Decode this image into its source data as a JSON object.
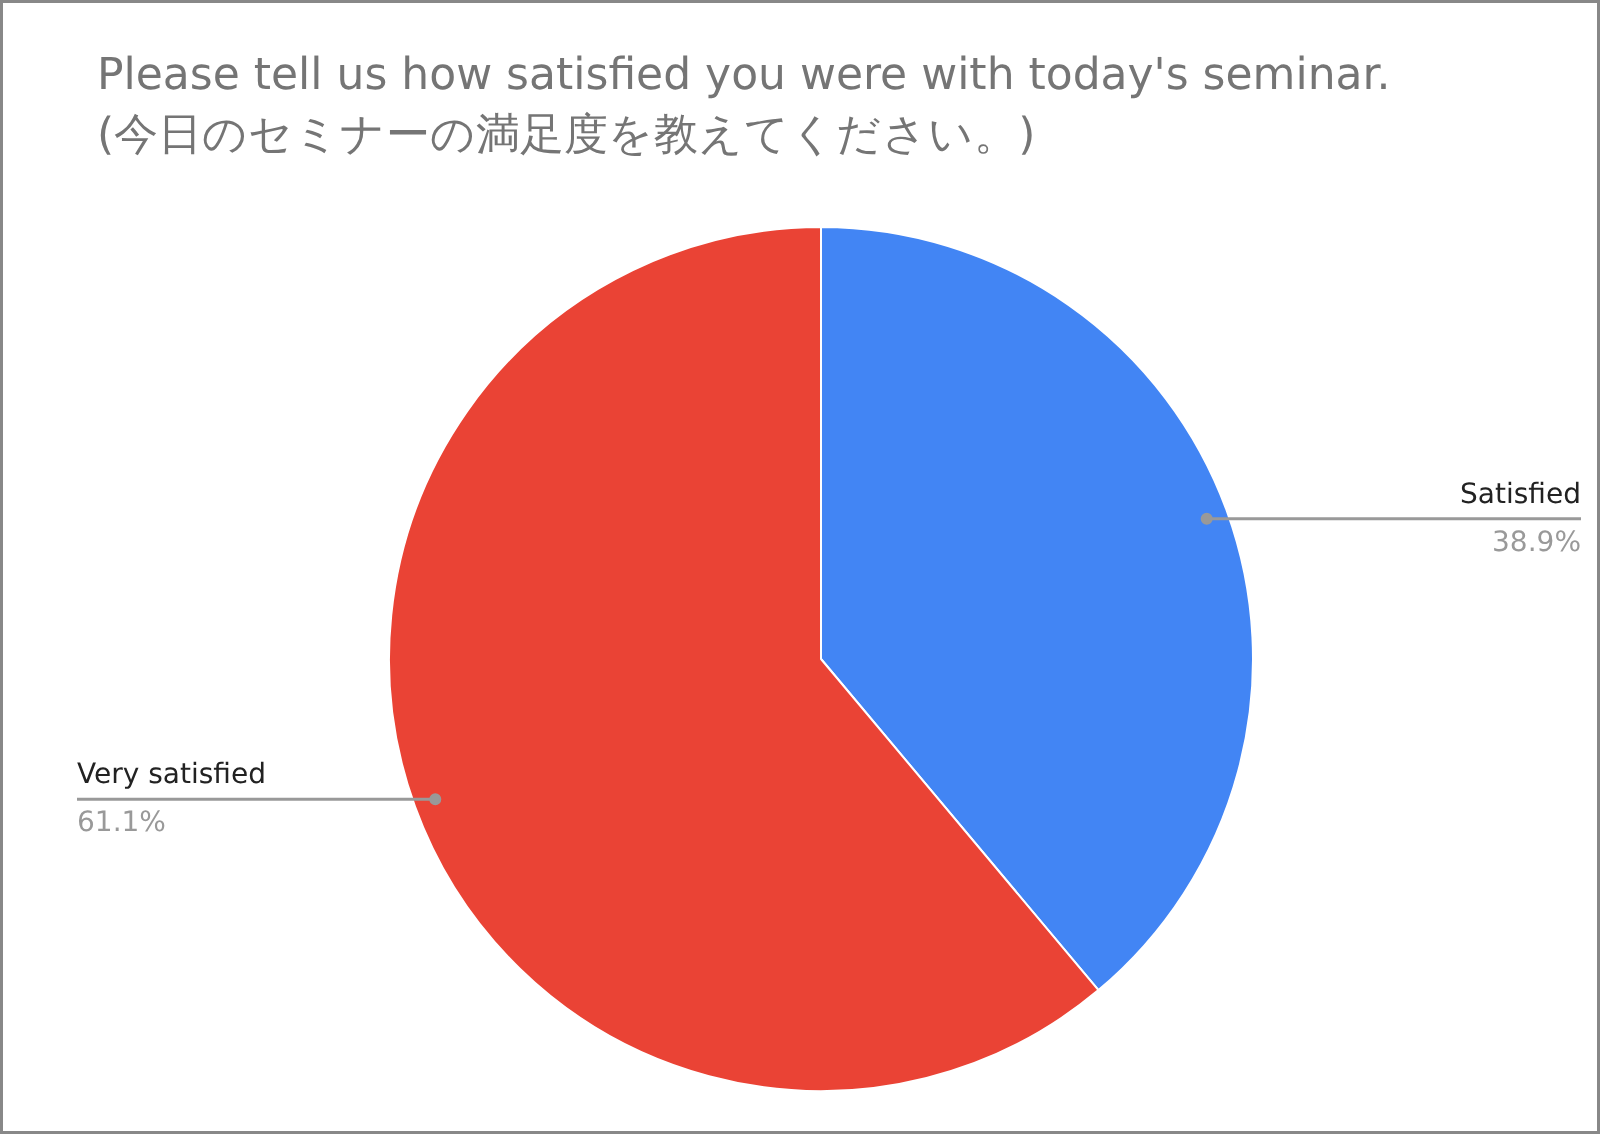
{
  "chart_data": {
    "type": "pie",
    "title": "Please tell us how satisfied you were with today's seminar.\n(今日のセミナーの満足度を教えてください。)",
    "categories": [
      "Satisfied",
      "Very satisfied"
    ],
    "values": [
      38.9,
      61.1
    ],
    "colors": [
      "#4285f4",
      "#ea4335"
    ],
    "value_labels": [
      "38.9%",
      "61.1%"
    ]
  }
}
